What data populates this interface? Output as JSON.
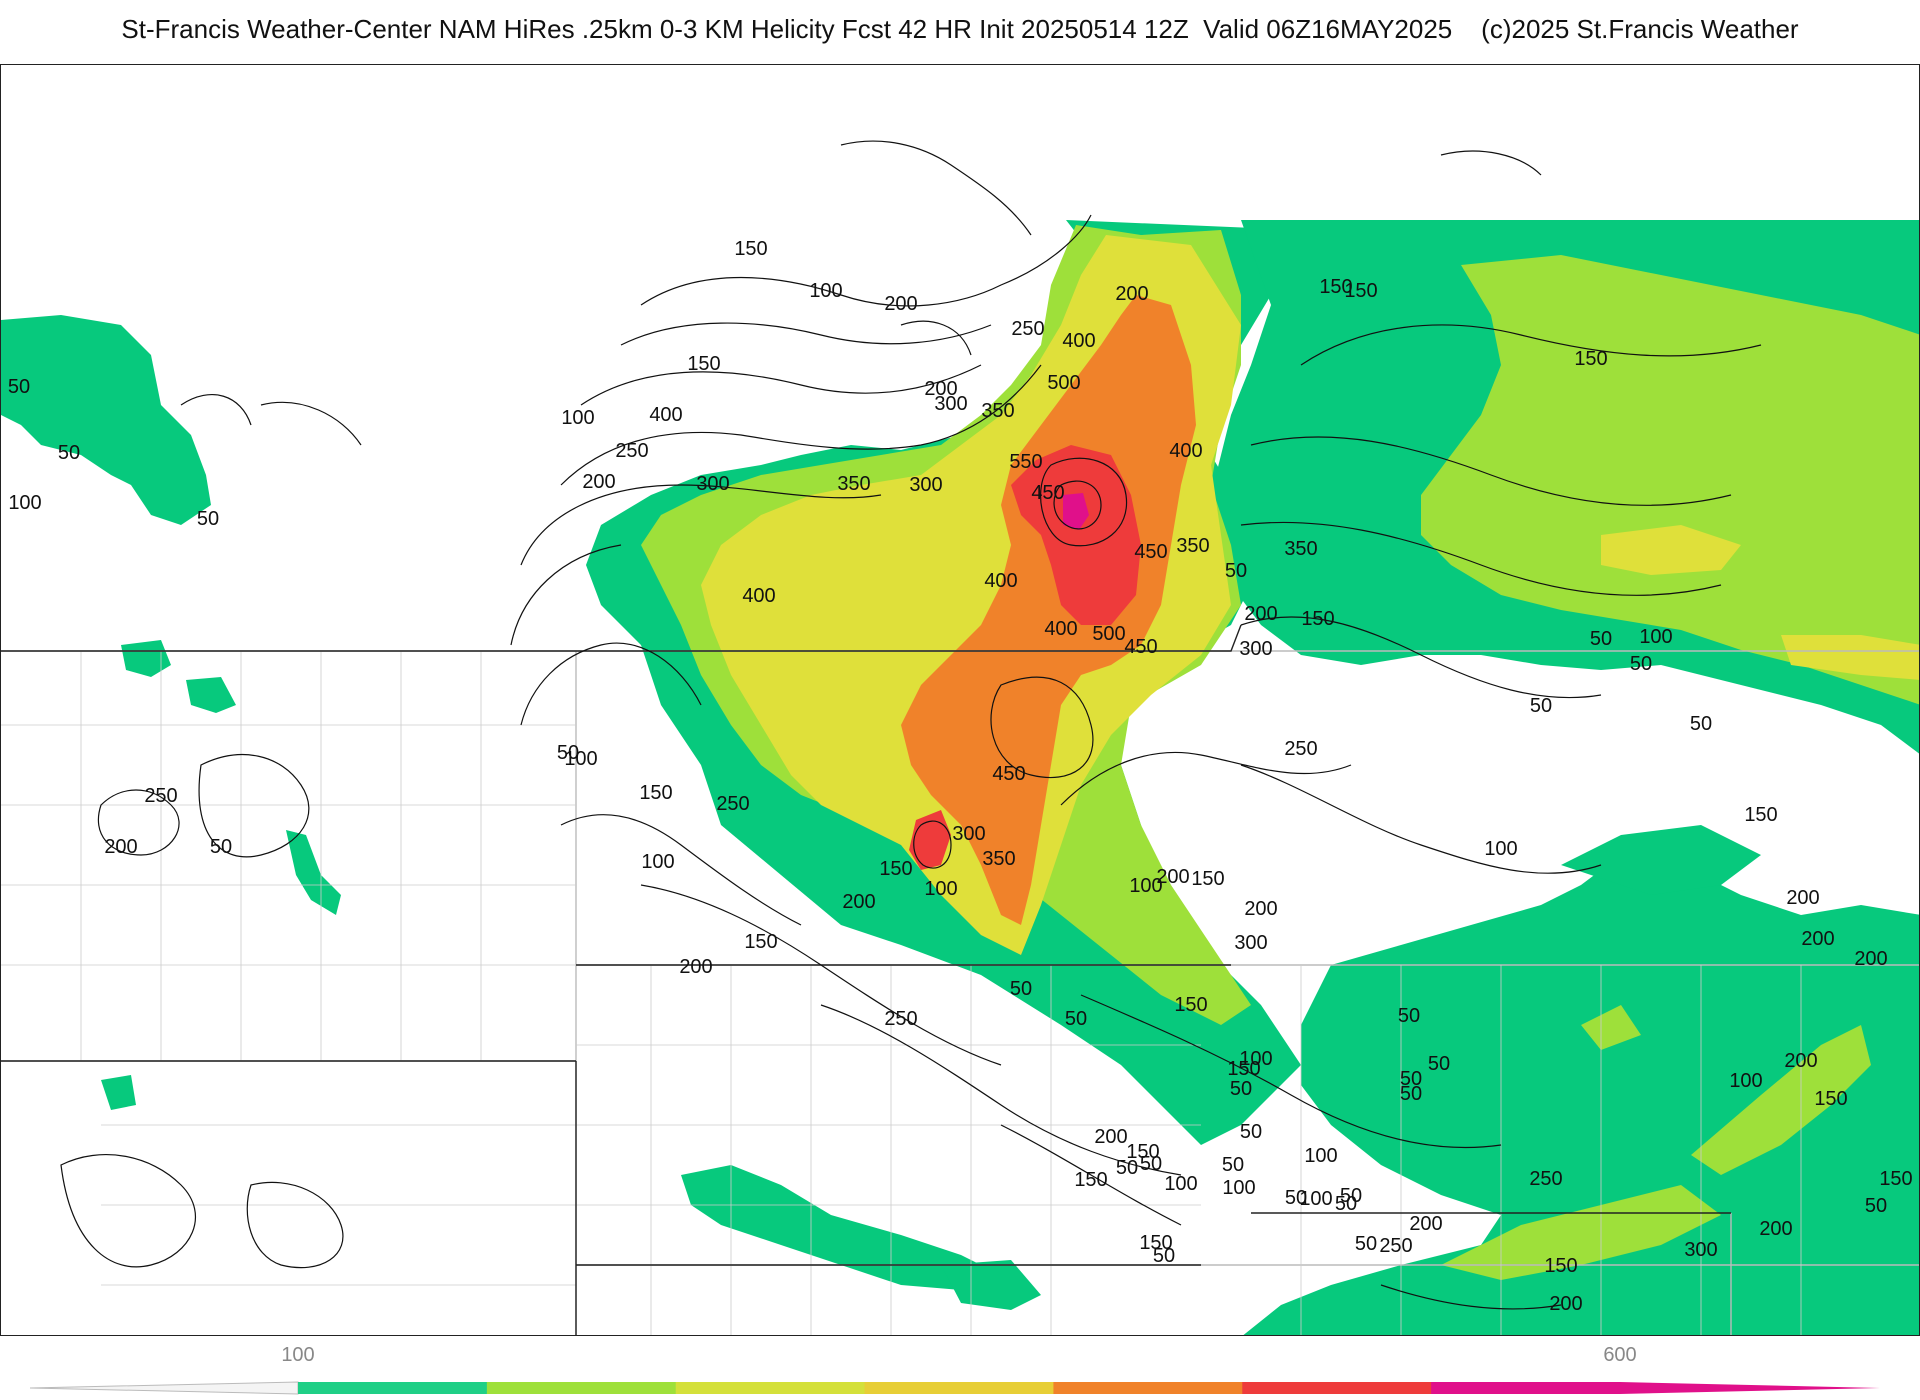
{
  "title": "St-Francis Weather-Center NAM HiRes .25km 0-3 KM Helicity Fcst 42 HR Init 20250514 12Z  Valid 06Z16MAY2025    (c)2025 St.Francis Weather",
  "colors": {
    "level_100_150": "#07c97d",
    "level_150_200": "#0fd28a",
    "level_200_300": "#9ee03a",
    "level_300_400": "#dfe03a",
    "level_400_500": "#f0822a",
    "level_500_600": "#ee3b3b",
    "level_600_plus": "#e0108a",
    "contour": "#111111",
    "borders": "#bbbbbb"
  },
  "colorbar": {
    "ticks": [
      "100",
      "600"
    ],
    "segment_colors": [
      "#1fcf86",
      "#9ee03a",
      "#d4e03a",
      "#e7ce36",
      "#f0822a",
      "#ee3b3b",
      "#e0108a"
    ]
  },
  "contour_labels": [
    "150",
    "100",
    "200",
    "150",
    "250",
    "400",
    "500",
    "200",
    "350",
    "550",
    "400",
    "450",
    "450",
    "350",
    "300",
    "350",
    "400",
    "300",
    "200",
    "250",
    "300",
    "200",
    "150",
    "150",
    "100",
    "50",
    "50",
    "100",
    "50",
    "150",
    "50",
    "400",
    "150",
    "200",
    "300",
    "350",
    "250",
    "450",
    "500",
    "400",
    "400",
    "100",
    "250",
    "450",
    "350",
    "300",
    "200",
    "150",
    "50",
    "100",
    "150",
    "50",
    "250",
    "200",
    "100",
    "150",
    "200",
    "150",
    "300",
    "100",
    "150",
    "50",
    "100",
    "100",
    "50",
    "150",
    "150",
    "150",
    "200",
    "100",
    "200",
    "150",
    "200",
    "250",
    "50",
    "50",
    "50",
    "100",
    "50",
    "50",
    "50",
    "50",
    "100",
    "50",
    "100",
    "50",
    "150",
    "200",
    "200",
    "200",
    "150",
    "200",
    "100",
    "50",
    "200",
    "250",
    "200",
    "250",
    "300",
    "200",
    "150",
    "150",
    "50",
    "50",
    "50",
    "50",
    "50",
    "100",
    "50",
    "50",
    "50",
    "50"
  ]
}
